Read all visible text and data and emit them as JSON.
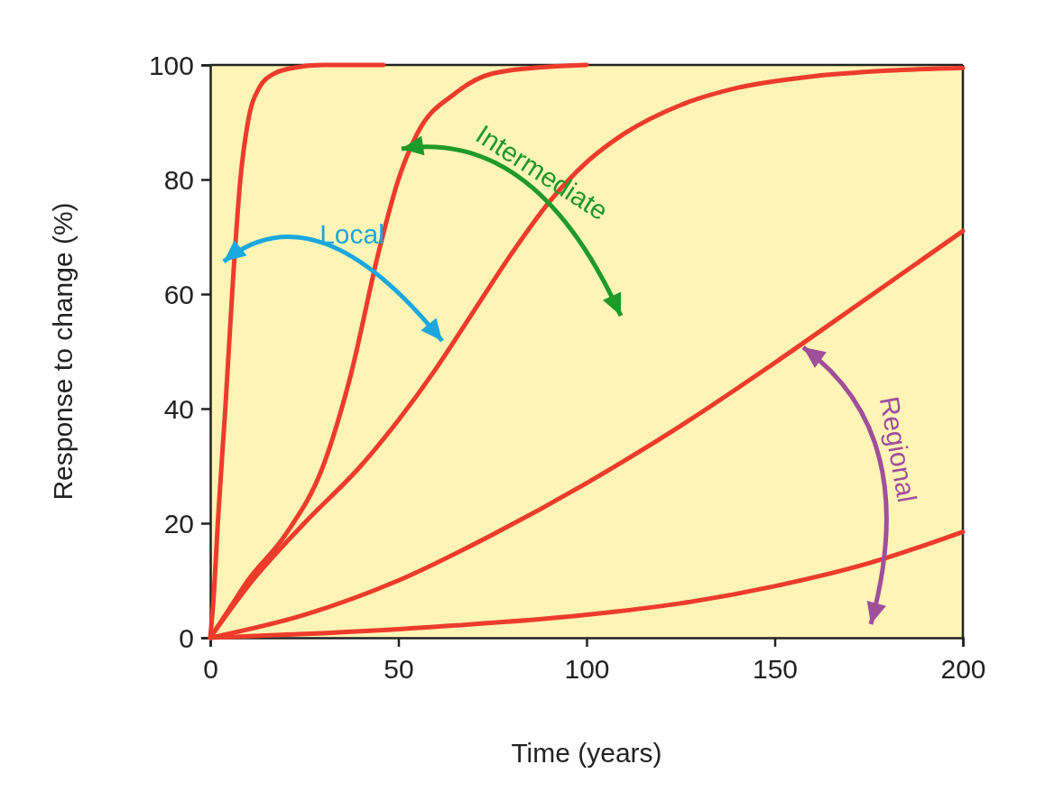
{
  "chart_data": {
    "type": "line",
    "xlabel": "Time (years)",
    "ylabel": "Response to change (%)",
    "xlim": [
      0,
      200
    ],
    "ylim": [
      0,
      100
    ],
    "xticks": [
      0,
      50,
      100,
      150,
      200
    ],
    "yticks": [
      0,
      20,
      40,
      60,
      80,
      100
    ],
    "grid": false,
    "marker": "none",
    "line_style": "solid",
    "series": [
      {
        "color": "#ee3b2b",
        "x": [
          0,
          1,
          2,
          4,
          6,
          8,
          10,
          13,
          17,
          22,
          30,
          46
        ],
        "values": [
          0,
          8,
          20,
          40,
          62,
          80,
          90,
          96,
          98.5,
          99.5,
          100,
          100
        ]
      },
      {
        "color": "#ee3b2b",
        "x": [
          0,
          5,
          10,
          20,
          30,
          37,
          45,
          50,
          55,
          65,
          75,
          90,
          100
        ],
        "values": [
          0,
          5,
          10,
          18,
          30,
          45,
          68,
          80,
          88,
          95,
          98.5,
          99.7,
          100
        ]
      },
      {
        "color": "#ee3b2b",
        "x": [
          0,
          10,
          25,
          40,
          50,
          60,
          70,
          80,
          90,
          100,
          110,
          125,
          140,
          160,
          180,
          200
        ],
        "values": [
          0,
          9,
          20,
          30,
          38,
          47,
          57,
          67,
          76,
          83,
          88,
          93,
          96,
          98,
          99,
          99.5
        ]
      },
      {
        "color": "#ee3b2b",
        "x": [
          0,
          25,
          50,
          75,
          100,
          125,
          150,
          175,
          200
        ],
        "values": [
          0,
          4,
          10,
          18,
          27,
          37,
          48,
          59.5,
          71
        ]
      },
      {
        "color": "#ee3b2b",
        "x": [
          0,
          50,
          100,
          125,
          150,
          175,
          200
        ],
        "values": [
          0,
          1.5,
          4,
          6,
          9,
          13,
          18.5
        ]
      }
    ],
    "annotations": [
      "Local",
      "Intermediate",
      "Regional"
    ]
  }
}
